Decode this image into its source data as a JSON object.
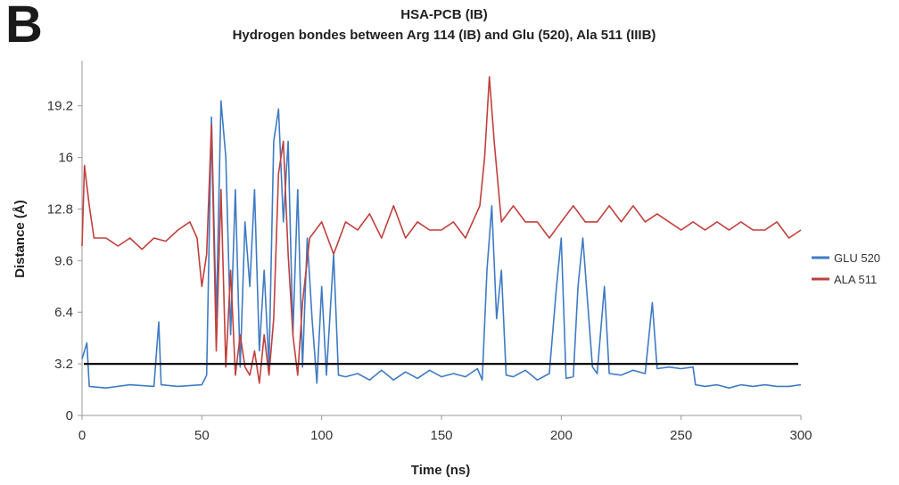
{
  "panel_label": "B",
  "chart_data": {
    "type": "line",
    "title": "HSA-PCB (IB)",
    "subtitle": "Hydrogen bondes between Arg 114 (IB) and Glu (520), Ala 511 (IIIB)",
    "xlabel": "Time (ns)",
    "ylabel": "Distance (Å)",
    "xlim": [
      0,
      300
    ],
    "ylim": [
      0,
      22
    ],
    "x_ticks": [
      "0",
      "50",
      "100",
      "150",
      "200",
      "250",
      "300"
    ],
    "y_ticks": [
      "0",
      "3.2",
      "6.4",
      "9.6",
      "12.8",
      "16",
      "19.2"
    ],
    "legend_position": "right",
    "reference_line": {
      "y": 3.2,
      "color": "#000000"
    },
    "series": [
      {
        "name": "GLU 520",
        "color": "#3f7bc4",
        "points": [
          [
            0,
            3.5
          ],
          [
            2,
            4.5
          ],
          [
            3,
            1.8
          ],
          [
            10,
            1.7
          ],
          [
            20,
            1.9
          ],
          [
            30,
            1.8
          ],
          [
            32,
            5.8
          ],
          [
            33,
            1.9
          ],
          [
            40,
            1.8
          ],
          [
            50,
            1.9
          ],
          [
            52,
            2.5
          ],
          [
            54,
            18.5
          ],
          [
            56,
            6
          ],
          [
            58,
            19.5
          ],
          [
            60,
            16
          ],
          [
            62,
            5
          ],
          [
            64,
            14
          ],
          [
            66,
            3
          ],
          [
            68,
            12
          ],
          [
            70,
            8
          ],
          [
            72,
            14
          ],
          [
            74,
            4
          ],
          [
            76,
            9
          ],
          [
            78,
            3
          ],
          [
            80,
            17
          ],
          [
            82,
            19
          ],
          [
            84,
            12
          ],
          [
            86,
            17
          ],
          [
            88,
            5
          ],
          [
            90,
            14
          ],
          [
            92,
            3
          ],
          [
            94,
            11
          ],
          [
            96,
            6
          ],
          [
            98,
            2
          ],
          [
            100,
            8
          ],
          [
            102,
            2.5
          ],
          [
            105,
            10
          ],
          [
            107,
            2.5
          ],
          [
            110,
            2.4
          ],
          [
            115,
            2.6
          ],
          [
            120,
            2.2
          ],
          [
            125,
            2.8
          ],
          [
            130,
            2.2
          ],
          [
            135,
            2.7
          ],
          [
            140,
            2.3
          ],
          [
            145,
            2.8
          ],
          [
            150,
            2.4
          ],
          [
            155,
            2.6
          ],
          [
            160,
            2.4
          ],
          [
            165,
            2.9
          ],
          [
            167,
            2.2
          ],
          [
            169,
            9
          ],
          [
            171,
            13
          ],
          [
            173,
            6
          ],
          [
            175,
            9
          ],
          [
            177,
            2.5
          ],
          [
            180,
            2.4
          ],
          [
            185,
            2.8
          ],
          [
            190,
            2.2
          ],
          [
            195,
            2.6
          ],
          [
            198,
            8
          ],
          [
            200,
            11
          ],
          [
            202,
            2.3
          ],
          [
            205,
            2.4
          ],
          [
            207,
            8
          ],
          [
            209,
            11
          ],
          [
            211,
            7
          ],
          [
            213,
            3
          ],
          [
            215,
            2.6
          ],
          [
            218,
            8
          ],
          [
            220,
            2.6
          ],
          [
            225,
            2.5
          ],
          [
            230,
            2.8
          ],
          [
            235,
            2.6
          ],
          [
            238,
            7
          ],
          [
            240,
            2.9
          ],
          [
            245,
            3
          ],
          [
            250,
            2.9
          ],
          [
            255,
            3
          ],
          [
            256,
            1.9
          ],
          [
            260,
            1.8
          ],
          [
            265,
            1.9
          ],
          [
            270,
            1.7
          ],
          [
            275,
            1.9
          ],
          [
            280,
            1.8
          ],
          [
            285,
            1.9
          ],
          [
            290,
            1.8
          ],
          [
            295,
            1.8
          ],
          [
            300,
            1.9
          ]
        ]
      },
      {
        "name": "ALA 511",
        "color": "#c0403d",
        "points": [
          [
            0,
            10.5
          ],
          [
            1,
            15.5
          ],
          [
            3,
            13
          ],
          [
            5,
            11
          ],
          [
            10,
            11
          ],
          [
            15,
            10.5
          ],
          [
            20,
            11
          ],
          [
            25,
            10.3
          ],
          [
            30,
            11
          ],
          [
            35,
            10.8
          ],
          [
            40,
            11.5
          ],
          [
            45,
            12
          ],
          [
            48,
            11
          ],
          [
            50,
            8
          ],
          [
            52,
            10
          ],
          [
            54,
            18
          ],
          [
            56,
            4
          ],
          [
            58,
            14
          ],
          [
            60,
            3
          ],
          [
            62,
            9
          ],
          [
            64,
            2.5
          ],
          [
            66,
            5
          ],
          [
            68,
            3
          ],
          [
            70,
            2.5
          ],
          [
            72,
            4
          ],
          [
            74,
            2
          ],
          [
            76,
            5
          ],
          [
            78,
            2.5
          ],
          [
            80,
            6
          ],
          [
            82,
            15
          ],
          [
            84,
            17
          ],
          [
            86,
            10
          ],
          [
            88,
            5
          ],
          [
            90,
            2.5
          ],
          [
            92,
            7
          ],
          [
            95,
            11
          ],
          [
            100,
            12
          ],
          [
            105,
            10
          ],
          [
            110,
            12
          ],
          [
            115,
            11.5
          ],
          [
            120,
            12.5
          ],
          [
            125,
            11
          ],
          [
            130,
            13
          ],
          [
            135,
            11
          ],
          [
            140,
            12
          ],
          [
            145,
            11.5
          ],
          [
            150,
            11.5
          ],
          [
            155,
            12
          ],
          [
            160,
            11
          ],
          [
            163,
            12
          ],
          [
            166,
            13
          ],
          [
            168,
            16
          ],
          [
            170,
            21
          ],
          [
            172,
            17
          ],
          [
            175,
            12
          ],
          [
            180,
            13
          ],
          [
            185,
            12
          ],
          [
            190,
            12
          ],
          [
            195,
            11
          ],
          [
            200,
            12
          ],
          [
            205,
            13
          ],
          [
            210,
            12
          ],
          [
            215,
            12
          ],
          [
            220,
            13
          ],
          [
            225,
            12
          ],
          [
            230,
            13
          ],
          [
            235,
            12
          ],
          [
            240,
            12.5
          ],
          [
            245,
            12
          ],
          [
            250,
            11.5
          ],
          [
            255,
            12
          ],
          [
            260,
            11.5
          ],
          [
            265,
            12
          ],
          [
            270,
            11.5
          ],
          [
            275,
            12
          ],
          [
            280,
            11.5
          ],
          [
            285,
            11.5
          ],
          [
            290,
            12
          ],
          [
            295,
            11
          ],
          [
            300,
            11.5
          ]
        ]
      }
    ]
  }
}
